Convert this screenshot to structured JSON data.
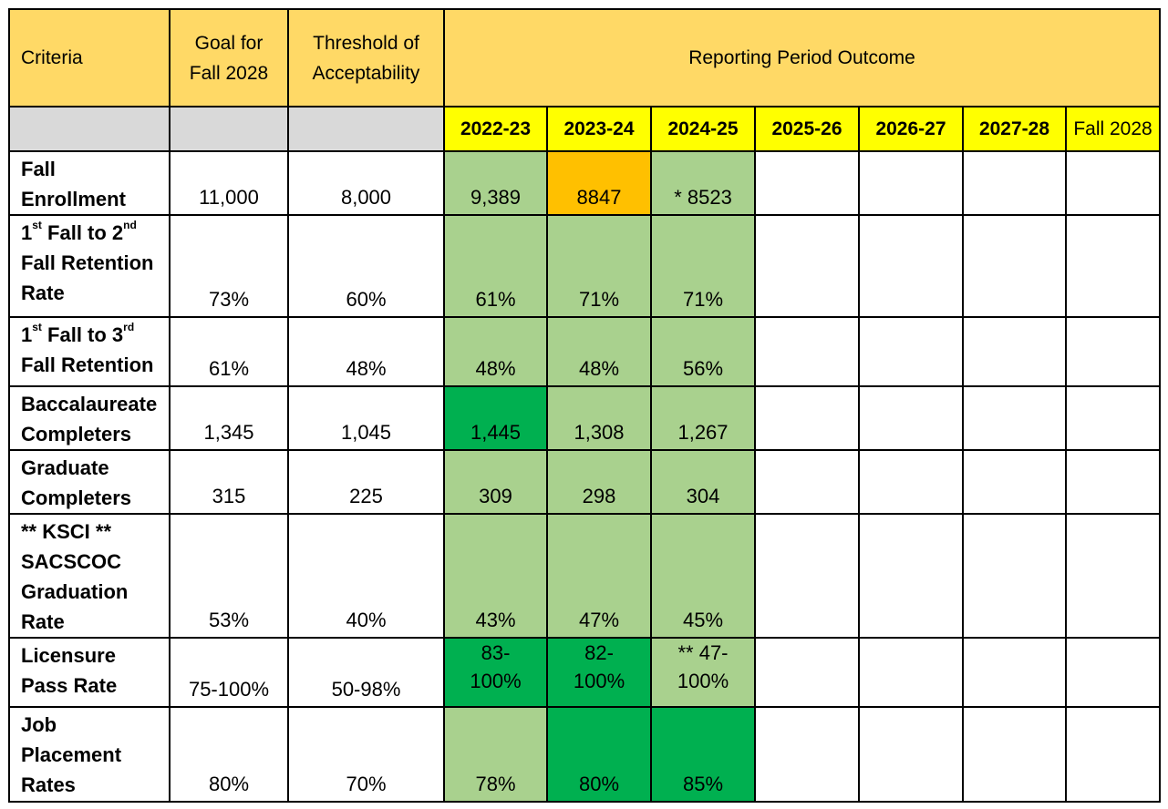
{
  "headers": {
    "criteria": "Criteria",
    "goal_line1": "Goal for",
    "goal_line2": "Fall 2028",
    "threshold_line1": "Threshold of",
    "threshold_line2": "Acceptability",
    "outcome": "Reporting Period Outcome"
  },
  "years": [
    "2022-23",
    "2023-24",
    "2024-25",
    "2025-26",
    "2026-27",
    "2027-28",
    "Fall 2028"
  ],
  "rows": [
    {
      "criteria_lines": [
        "Fall",
        "Enrollment"
      ],
      "goal": "11,000",
      "threshold": "8,000",
      "values": [
        "9,389",
        "8847",
        "* 8523"
      ],
      "colors": [
        "#a9d18e",
        "#ffc000",
        "#a9d18e"
      ]
    },
    {
      "criteria_parts": {
        "a": "1",
        "a_sup": "st",
        "b": " Fall to 2",
        "b_sup": "nd",
        "line2": "Fall Retention",
        "line3": "Rate"
      },
      "goal": "73%",
      "threshold": "60%",
      "values": [
        "61%",
        "71%",
        "71%"
      ],
      "colors": [
        "#a9d18e",
        "#a9d18e",
        "#a9d18e"
      ]
    },
    {
      "criteria_parts": {
        "a": "1",
        "a_sup": "st",
        "b": " Fall to 3",
        "b_sup": "rd",
        "line2": "Fall Retention"
      },
      "goal": "61%",
      "threshold": "48%",
      "values": [
        "48%",
        "48%",
        "56%"
      ],
      "colors": [
        "#a9d18e",
        "#a9d18e",
        "#a9d18e"
      ]
    },
    {
      "criteria_lines": [
        "Baccalaureate",
        "Completers"
      ],
      "goal": "1,345",
      "threshold": "1,045",
      "values": [
        "1,445",
        "1,308",
        "1,267"
      ],
      "colors": [
        "#00b050",
        "#a9d18e",
        "#a9d18e"
      ]
    },
    {
      "criteria_lines": [
        "Graduate",
        "Completers"
      ],
      "goal": "315",
      "threshold": "225",
      "values": [
        "309",
        "298",
        "304"
      ],
      "colors": [
        "#a9d18e",
        "#a9d18e",
        "#a9d18e"
      ]
    },
    {
      "criteria_lines": [
        "** KSCI **",
        "SACSCOC",
        "Graduation",
        "Rate"
      ],
      "goal": "53%",
      "threshold": "40%",
      "values": [
        "43%",
        "47%",
        "45%"
      ],
      "colors": [
        "#a9d18e",
        "#a9d18e",
        "#a9d18e"
      ]
    },
    {
      "criteria_lines": [
        "Licensure",
        "Pass Rate"
      ],
      "goal": "75-100%",
      "threshold": "50-98%",
      "values_lines": [
        [
          "83-",
          "100%"
        ],
        [
          "82-",
          "100%"
        ],
        [
          "** 47-",
          "100%"
        ]
      ],
      "colors": [
        "#00b050",
        "#00b050",
        "#a9d18e"
      ]
    },
    {
      "criteria_lines": [
        "Job",
        "Placement",
        "Rates"
      ],
      "goal": "80%",
      "threshold": "70%",
      "values": [
        "78%",
        "80%",
        "85%"
      ],
      "colors": [
        "#a9d18e",
        "#00b050",
        "#00b050"
      ]
    }
  ]
}
